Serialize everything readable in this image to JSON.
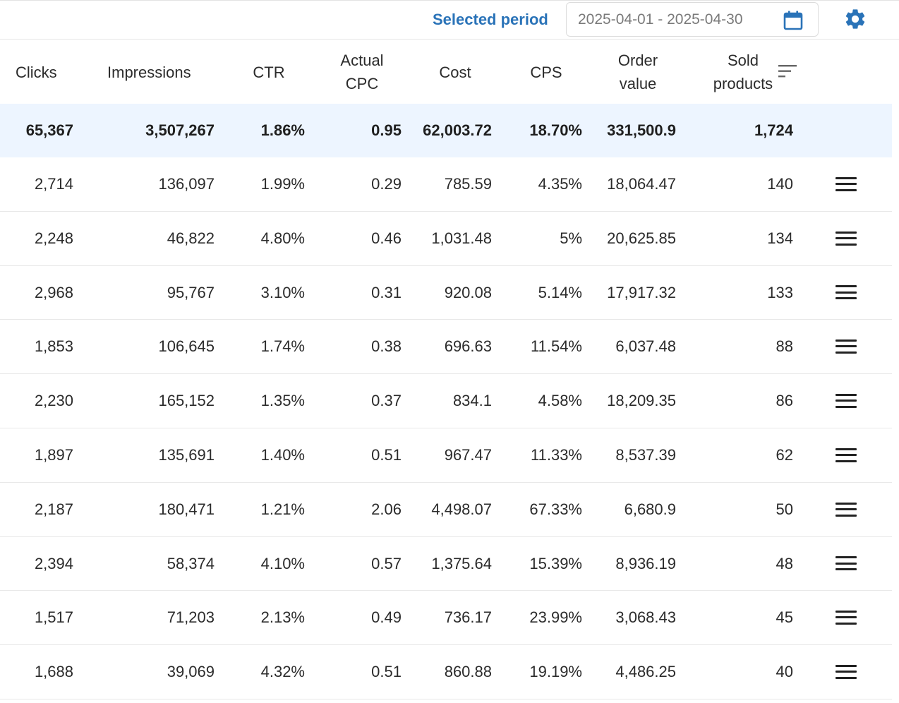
{
  "toolbar": {
    "period_label": "Selected period",
    "date_range": "2025-04-01 - 2025-04-30"
  },
  "columns": [
    {
      "key": "clicks",
      "label": "Clicks"
    },
    {
      "key": "impressions",
      "label": "Impressions"
    },
    {
      "key": "ctr",
      "label": "CTR"
    },
    {
      "key": "actual_cpc",
      "label": "Actual CPC"
    },
    {
      "key": "cost",
      "label": "Cost"
    },
    {
      "key": "cps",
      "label": "CPS"
    },
    {
      "key": "order_value",
      "label": "Order value"
    },
    {
      "key": "sold_products",
      "label": "Sold products"
    }
  ],
  "totals": [
    "65,367",
    "3,507,267",
    "1.86%",
    "0.95",
    "62,003.72",
    "18.70%",
    "331,500.9",
    "1,724"
  ],
  "rows": [
    [
      "2,714",
      "136,097",
      "1.99%",
      "0.29",
      "785.59",
      "4.35%",
      "18,064.47",
      "140"
    ],
    [
      "2,248",
      "46,822",
      "4.80%",
      "0.46",
      "1,031.48",
      "5%",
      "20,625.85",
      "134"
    ],
    [
      "2,968",
      "95,767",
      "3.10%",
      "0.31",
      "920.08",
      "5.14%",
      "17,917.32",
      "133"
    ],
    [
      "1,853",
      "106,645",
      "1.74%",
      "0.38",
      "696.63",
      "11.54%",
      "6,037.48",
      "88"
    ],
    [
      "2,230",
      "165,152",
      "1.35%",
      "0.37",
      "834.1",
      "4.58%",
      "18,209.35",
      "86"
    ],
    [
      "1,897",
      "135,691",
      "1.40%",
      "0.51",
      "967.47",
      "11.33%",
      "8,537.39",
      "62"
    ],
    [
      "2,187",
      "180,471",
      "1.21%",
      "2.06",
      "4,498.07",
      "67.33%",
      "6,680.9",
      "50"
    ],
    [
      "2,394",
      "58,374",
      "4.10%",
      "0.57",
      "1,375.64",
      "15.39%",
      "8,936.19",
      "48"
    ],
    [
      "1,517",
      "71,203",
      "2.13%",
      "0.49",
      "736.17",
      "23.99%",
      "3,068.43",
      "45"
    ],
    [
      "1,688",
      "39,069",
      "4.32%",
      "0.51",
      "860.88",
      "19.19%",
      "4,486.25",
      "40"
    ]
  ],
  "icons": {
    "calendar": "calendar-icon",
    "settings": "gear-icon",
    "sort": "sort-icon",
    "row_menu": "menu-icon"
  },
  "colors": {
    "accent": "#2a73b8",
    "totals_background": "#edf5ff"
  }
}
